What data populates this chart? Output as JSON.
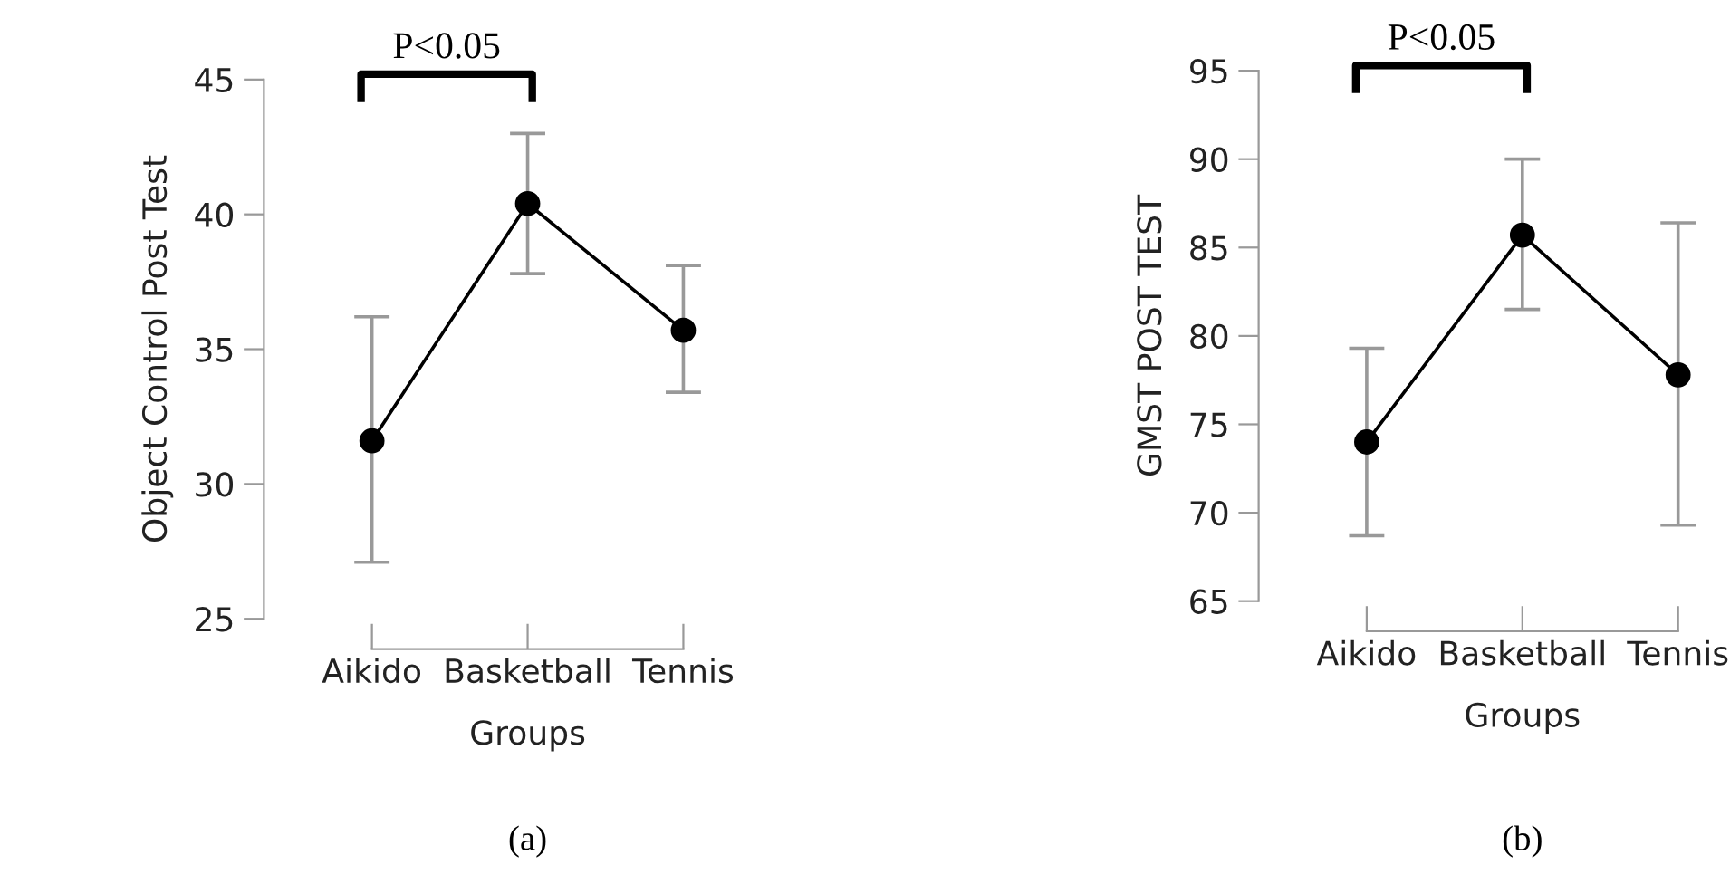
{
  "chart_data": [
    {
      "type": "line",
      "ylabel": "Object Control Post Test",
      "xlabel": "Groups",
      "categories": [
        "Aikido",
        "Basketball",
        "Tennis"
      ],
      "series": [
        {
          "color": "#000000",
          "values": [
            31.6,
            40.4,
            35.7
          ],
          "errors": [
            [
              27.1,
              36.2
            ],
            [
              37.8,
              43.0
            ],
            [
              33.4,
              38.1
            ]
          ]
        }
      ],
      "ylim": [
        25,
        45
      ],
      "yticks": [
        25,
        30,
        35,
        40,
        45
      ],
      "marker": "circle",
      "line_style": "solid",
      "grid": false,
      "legend": false,
      "annotations": [
        "P<0.05",
        "(a)"
      ]
    },
    {
      "type": "line",
      "ylabel": "GMST POST TEST",
      "xlabel": "Groups",
      "categories": [
        "Aikido",
        "Basketball",
        "Tennis"
      ],
      "series": [
        {
          "color": "#000000",
          "values": [
            74.0,
            85.7,
            77.8
          ],
          "errors": [
            [
              68.7,
              79.3
            ],
            [
              81.5,
              90.0
            ],
            [
              69.3,
              86.4
            ]
          ]
        }
      ],
      "ylim": [
        65,
        95
      ],
      "yticks": [
        65,
        70,
        75,
        80,
        85,
        90,
        95
      ],
      "marker": "circle",
      "line_style": "solid",
      "grid": false,
      "legend": false,
      "annotations": [
        "P<0.05",
        "(b)"
      ]
    }
  ]
}
